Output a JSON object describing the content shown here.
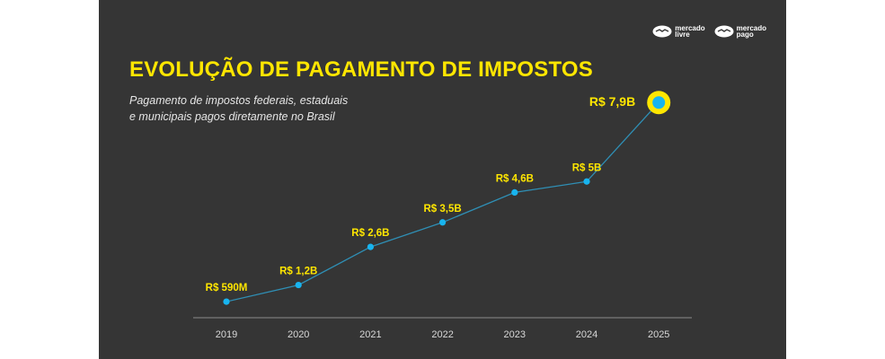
{
  "brands": [
    {
      "line1": "mercado",
      "line2": "livre"
    },
    {
      "line1": "mercado",
      "line2": "pago"
    }
  ],
  "colors": {
    "background": "#353535",
    "accent": "#ffe600",
    "point": "#18b4ef",
    "line": "#2f8fb5"
  },
  "chart_data": {
    "type": "line",
    "title": "EVOLUÇÃO DE PAGAMENTO DE IMPOSTOS",
    "subtitle_lines": [
      "Pagamento de impostos federais, estaduais",
      "e municipais pagos diretamente no Brasil"
    ],
    "xlabel": "",
    "ylabel": "",
    "grid": false,
    "legend": "none",
    "categories": [
      "2019",
      "2020",
      "2021",
      "2022",
      "2023",
      "2024",
      "2025"
    ],
    "series": [
      {
        "values": [
          0.59,
          1.2,
          2.6,
          3.5,
          4.6,
          5.0,
          7.9
        ],
        "labels": [
          "R$ 590M",
          "R$ 1,2B",
          "R$ 2,6B",
          "R$ 3,5B",
          "R$ 4,6B",
          "R$ 5B",
          "R$ 7,9B"
        ]
      }
    ],
    "ylim": [
      0,
      8.6
    ],
    "highlight": "2025"
  }
}
